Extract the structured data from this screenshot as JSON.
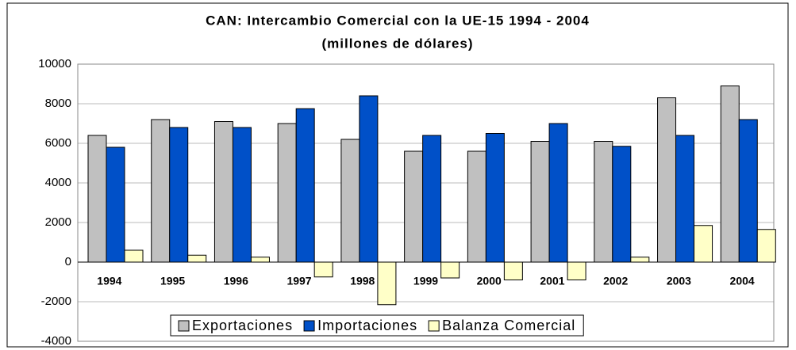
{
  "chart_data": {
    "type": "bar",
    "title": "CAN: Intercambio Comercial  con la  UE-15  1994 - 2004",
    "subtitle": "(millones de dólares)",
    "categories": [
      "1994",
      "1995",
      "1996",
      "1997",
      "1998",
      "1999",
      "2000",
      "2001",
      "2002",
      "2003",
      "2004"
    ],
    "series": [
      {
        "name": "Exportaciones",
        "color": "#c0c0c0",
        "values": [
          6400,
          7200,
          7100,
          7000,
          6200,
          5600,
          5600,
          6100,
          6100,
          8300,
          8900
        ]
      },
      {
        "name": "Importaciones",
        "color": "#0050c8",
        "values": [
          5800,
          6800,
          6800,
          7750,
          8400,
          6400,
          6500,
          7000,
          5850,
          6400,
          7200
        ]
      },
      {
        "name": "Balanza Comercial",
        "color": "#ffffc8",
        "values": [
          600,
          350,
          250,
          -750,
          -2150,
          -800,
          -900,
          -900,
          250,
          1850,
          1650
        ]
      }
    ],
    "ylim": [
      -4000,
      10000
    ],
    "yticks": [
      -4000,
      -2000,
      0,
      2000,
      4000,
      6000,
      8000,
      10000
    ],
    "grid": true
  }
}
